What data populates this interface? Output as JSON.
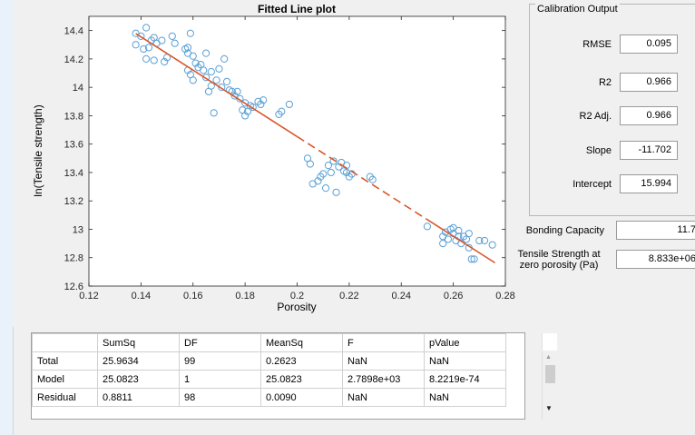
{
  "chart_data": {
    "type": "scatter",
    "title": "Fitted Line plot",
    "xlabel": "Porosity",
    "ylabel": "ln(Tensile strength)",
    "xlim": [
      0.12,
      0.28
    ],
    "ylim": [
      12.6,
      14.5
    ],
    "xticks": [
      "0.12",
      "0.14",
      "0.16",
      "0.18",
      "0.2",
      "0.22",
      "0.24",
      "0.26",
      "0.28"
    ],
    "yticks": [
      "12.6",
      "12.8",
      "13",
      "13.2",
      "13.4",
      "13.6",
      "13.8",
      "14",
      "14.2",
      "14.4"
    ],
    "grid": false,
    "series": [
      {
        "marker": "circle",
        "color": "#5aa0d6",
        "points": [
          [
            0.138,
            14.38
          ],
          [
            0.14,
            14.36
          ],
          [
            0.142,
            14.42
          ],
          [
            0.138,
            14.3
          ],
          [
            0.141,
            14.27
          ],
          [
            0.143,
            14.28
          ],
          [
            0.144,
            14.33
          ],
          [
            0.145,
            14.35
          ],
          [
            0.146,
            14.31
          ],
          [
            0.142,
            14.2
          ],
          [
            0.145,
            14.19
          ],
          [
            0.148,
            14.33
          ],
          [
            0.149,
            14.18
          ],
          [
            0.15,
            14.21
          ],
          [
            0.152,
            14.36
          ],
          [
            0.153,
            14.31
          ],
          [
            0.157,
            14.27
          ],
          [
            0.158,
            14.28
          ],
          [
            0.159,
            14.38
          ],
          [
            0.158,
            14.24
          ],
          [
            0.16,
            14.22
          ],
          [
            0.161,
            14.17
          ],
          [
            0.162,
            14.14
          ],
          [
            0.159,
            14.09
          ],
          [
            0.158,
            14.12
          ],
          [
            0.16,
            14.05
          ],
          [
            0.163,
            14.16
          ],
          [
            0.164,
            14.12
          ],
          [
            0.165,
            14.24
          ],
          [
            0.165,
            14.07
          ],
          [
            0.166,
            13.97
          ],
          [
            0.167,
            14.11
          ],
          [
            0.167,
            14.01
          ],
          [
            0.168,
            13.82
          ],
          [
            0.169,
            14.05
          ],
          [
            0.17,
            14.13
          ],
          [
            0.171,
            14.0
          ],
          [
            0.172,
            14.2
          ],
          [
            0.173,
            14.04
          ],
          [
            0.174,
            13.98
          ],
          [
            0.175,
            13.97
          ],
          [
            0.176,
            13.94
          ],
          [
            0.177,
            13.97
          ],
          [
            0.178,
            13.92
          ],
          [
            0.179,
            13.84
          ],
          [
            0.18,
            13.89
          ],
          [
            0.18,
            13.8
          ],
          [
            0.181,
            13.83
          ],
          [
            0.182,
            13.87
          ],
          [
            0.183,
            13.86
          ],
          [
            0.185,
            13.9
          ],
          [
            0.186,
            13.88
          ],
          [
            0.187,
            13.91
          ],
          [
            0.193,
            13.81
          ],
          [
            0.194,
            13.83
          ],
          [
            0.197,
            13.88
          ],
          [
            0.204,
            13.5
          ],
          [
            0.205,
            13.46
          ],
          [
            0.206,
            13.32
          ],
          [
            0.208,
            13.34
          ],
          [
            0.209,
            13.37
          ],
          [
            0.21,
            13.39
          ],
          [
            0.211,
            13.29
          ],
          [
            0.212,
            13.45
          ],
          [
            0.213,
            13.4
          ],
          [
            0.214,
            13.48
          ],
          [
            0.215,
            13.26
          ],
          [
            0.216,
            13.44
          ],
          [
            0.217,
            13.47
          ],
          [
            0.218,
            13.41
          ],
          [
            0.219,
            13.45
          ],
          [
            0.219,
            13.4
          ],
          [
            0.22,
            13.37
          ],
          [
            0.221,
            13.39
          ],
          [
            0.228,
            13.37
          ],
          [
            0.229,
            13.35
          ],
          [
            0.25,
            13.02
          ],
          [
            0.256,
            12.9
          ],
          [
            0.256,
            12.95
          ],
          [
            0.257,
            12.98
          ],
          [
            0.258,
            12.93
          ],
          [
            0.259,
            13.0
          ],
          [
            0.26,
            13.01
          ],
          [
            0.26,
            12.97
          ],
          [
            0.261,
            12.92
          ],
          [
            0.262,
            12.99
          ],
          [
            0.262,
            12.95
          ],
          [
            0.263,
            12.9
          ],
          [
            0.264,
            12.95
          ],
          [
            0.265,
            12.93
          ],
          [
            0.266,
            12.87
          ],
          [
            0.266,
            12.97
          ],
          [
            0.267,
            12.79
          ],
          [
            0.268,
            12.79
          ],
          [
            0.27,
            12.92
          ],
          [
            0.272,
            12.92
          ],
          [
            0.275,
            12.89
          ]
        ]
      },
      {
        "type": "line",
        "color": "#d9572b",
        "segments": [
          {
            "style": "solid",
            "x": [
              0.138,
              0.2
            ],
            "y": [
              14.379,
              13.653
            ]
          },
          {
            "style": "dashed",
            "x": [
              0.2,
              0.25
            ],
            "y": [
              13.653,
              13.068
            ]
          },
          {
            "style": "solid",
            "x": [
              0.25,
              0.276
            ],
            "y": [
              13.068,
              12.764
            ]
          }
        ]
      }
    ]
  },
  "calibration": {
    "title": "Calibration Output",
    "rmse_label": "RMSE",
    "rmse_value": "0.095",
    "r2_label": "R2",
    "r2_value": "0.966",
    "r2adj_label": "R2 Adj.",
    "r2adj_value": "0.966",
    "slope_label": "Slope",
    "slope_value": "-11.702",
    "intercept_label": "Intercept",
    "intercept_value": "15.994"
  },
  "bonding": {
    "label": "Bonding Capacity",
    "value": "11.7"
  },
  "tensile": {
    "label_line1": "Tensile Strength at",
    "label_line2": "zero porosity (Pa)",
    "value": "8.833e+06"
  },
  "anova": {
    "headers": [
      "",
      "SumSq",
      "DF",
      "MeanSq",
      "F",
      "pValue"
    ],
    "rows": [
      [
        "Total",
        "25.9634",
        "99",
        "0.2623",
        "NaN",
        "NaN"
      ],
      [
        "Model",
        "25.0823",
        "1",
        "25.0823",
        "2.7898e+03",
        "8.2219e-74"
      ],
      [
        "Residual",
        "0.8811",
        "98",
        "0.0090",
        "NaN",
        "NaN"
      ]
    ]
  }
}
